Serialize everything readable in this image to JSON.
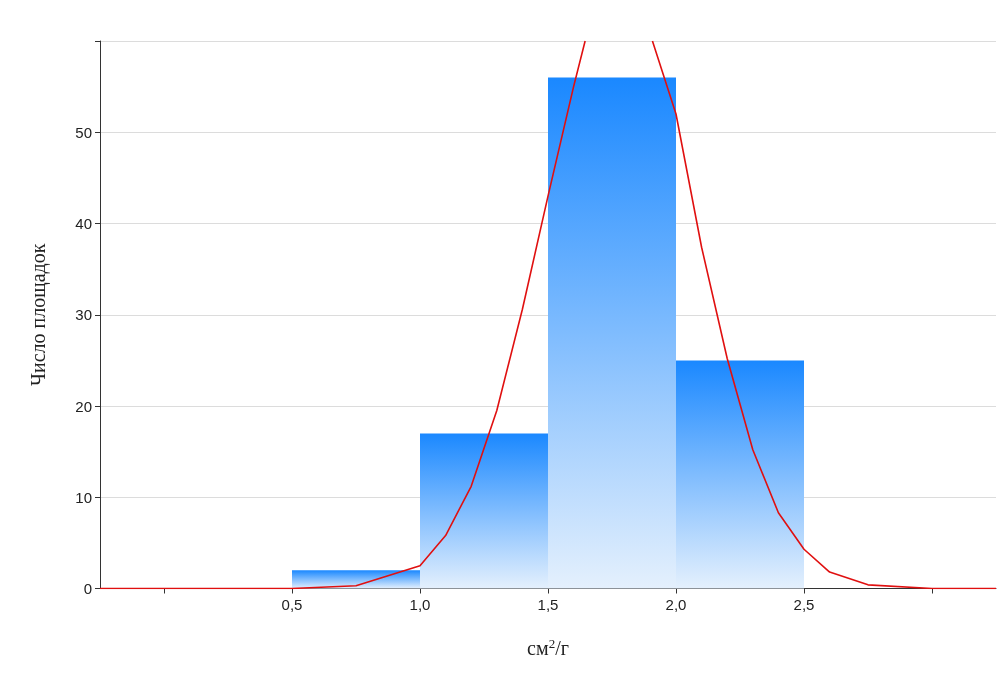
{
  "chart_data": {
    "type": "histogram",
    "xlabel": "см$^{2}$/г",
    "ylabel": "Число площадок",
    "bins": [
      0.5,
      1.0,
      1.5,
      2.0,
      2.5
    ],
    "values": [
      2,
      17,
      56,
      25
    ],
    "color": "#1a88ff",
    "series": [
      {
        "type": "line",
        "color": "#e01010",
        "x": [
          -0.25,
          0,
          0.25,
          0.5,
          0.75,
          1.0,
          1.1,
          1.2,
          1.3,
          1.4,
          1.5,
          1.6,
          1.645,
          1.78,
          1.908,
          2.0,
          2.1,
          2.2,
          2.3,
          2.4,
          2.5,
          2.6,
          2.75,
          3.0,
          3.25
        ],
        "values": [
          0,
          0,
          0,
          0,
          0.3,
          2.5,
          5.8,
          11.2,
          19.5,
          30.6,
          43,
          55,
          60,
          null,
          60,
          52,
          37.4,
          25.2,
          15.2,
          8.3,
          4.3,
          1.8,
          0.4,
          0,
          0
        ]
      }
    ],
    "xlim": [
      -0.25,
      3.25
    ],
    "ylim": [
      0,
      60
    ],
    "xticks": [
      {
        "value": 0,
        "label": null
      },
      {
        "value": 0.5,
        "label": "0,5"
      },
      {
        "value": 1.0,
        "label": "1,0"
      },
      {
        "value": 1.5,
        "label": "1,5"
      },
      {
        "value": 2.0,
        "label": "2,0"
      },
      {
        "value": 2.5,
        "label": "2,5"
      },
      {
        "value": 3.0,
        "label": null
      }
    ],
    "yticks": [
      0,
      10,
      20,
      30,
      40,
      50,
      {
        "value": 60,
        "label": null
      }
    ],
    "grid": "y",
    "legend": false
  }
}
